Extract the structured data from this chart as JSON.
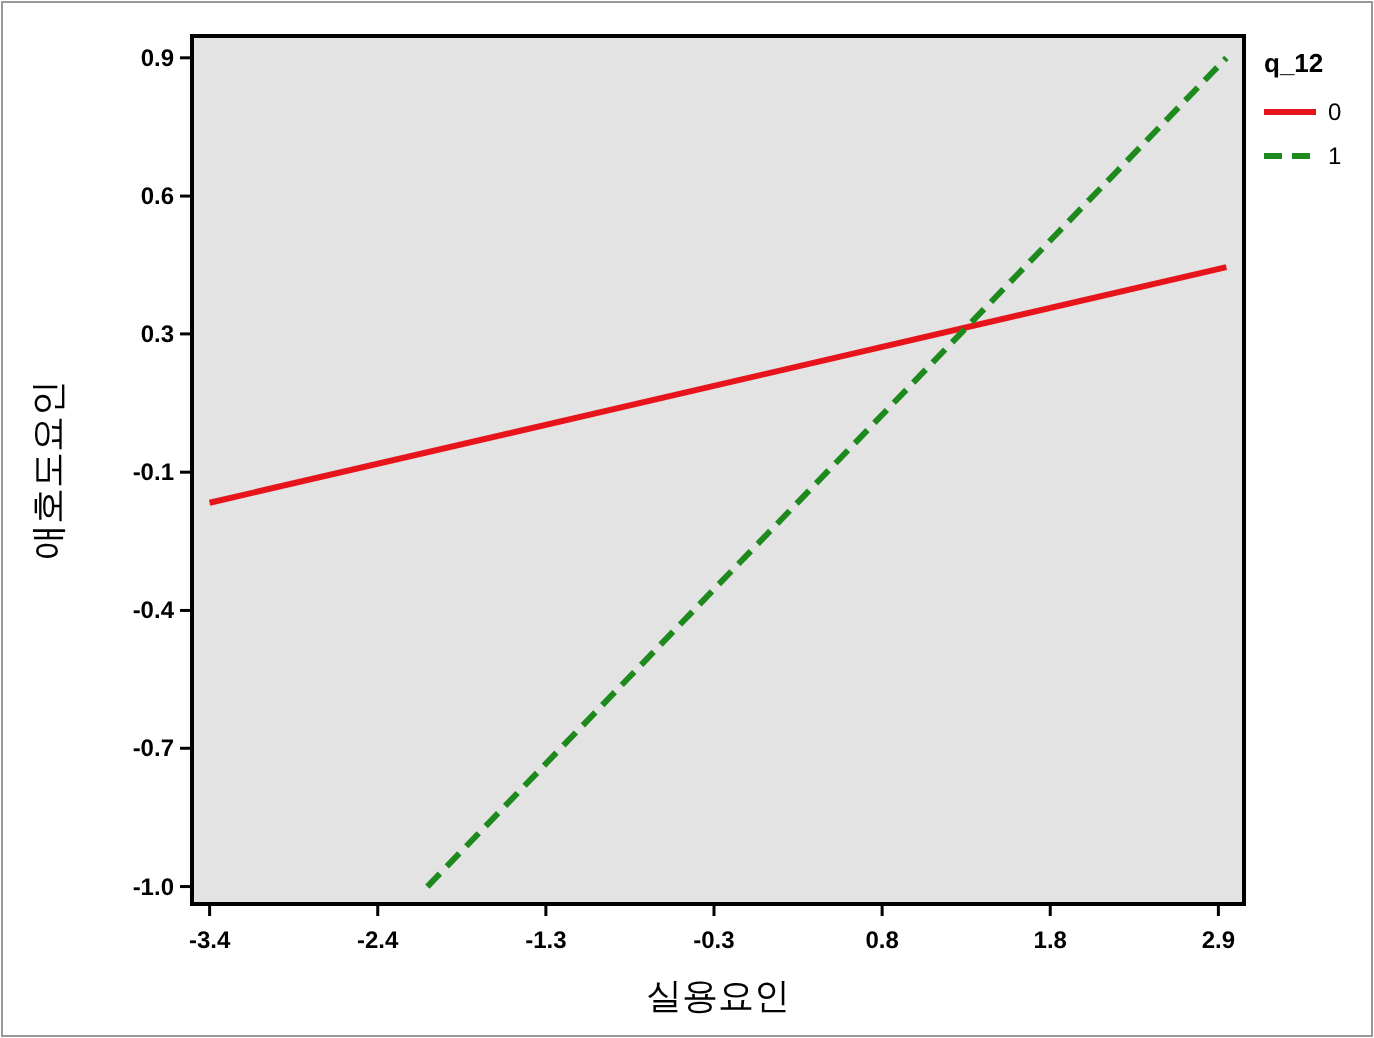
{
  "chart_data": {
    "type": "line",
    "xlabel": "실용요인",
    "ylabel": "애호도요인",
    "legend_title": "q_12",
    "legend": "right",
    "grid": false,
    "marker": "none",
    "xlim": [
      -3.51,
      3.06
    ],
    "ylim": [
      -1.04,
      0.95
    ],
    "xticks": [
      -3.4,
      {
        "value": -2.35,
        "label": "-2.4"
      },
      -1.3,
      {
        "value": -0.25,
        "label": "-0.3"
      },
      0.8,
      {
        "value": 1.85,
        "label": "1.8"
      },
      2.9
    ],
    "yticks": [
      {
        "value": -1.0,
        "label": "-1.0"
      },
      {
        "value": -0.683,
        "label": "-0.7"
      },
      {
        "value": -0.367,
        "label": "-0.4"
      },
      {
        "value": -0.05,
        "label": "-0.1"
      },
      {
        "value": 0.267,
        "label": "0.3"
      },
      {
        "value": 0.583,
        "label": "0.6"
      },
      0.9
    ],
    "series": [
      {
        "name": "0",
        "color": "#e8141b",
        "line_style": "solid",
        "x": [
          -3.4,
          2.95
        ],
        "values": [
          -0.12,
          0.42
        ]
      },
      {
        "name": "1",
        "color": "#1e8a1e",
        "line_style": "dashed",
        "x": [
          -2.04,
          2.95
        ],
        "values": [
          -1.0,
          0.9
        ]
      }
    ]
  }
}
